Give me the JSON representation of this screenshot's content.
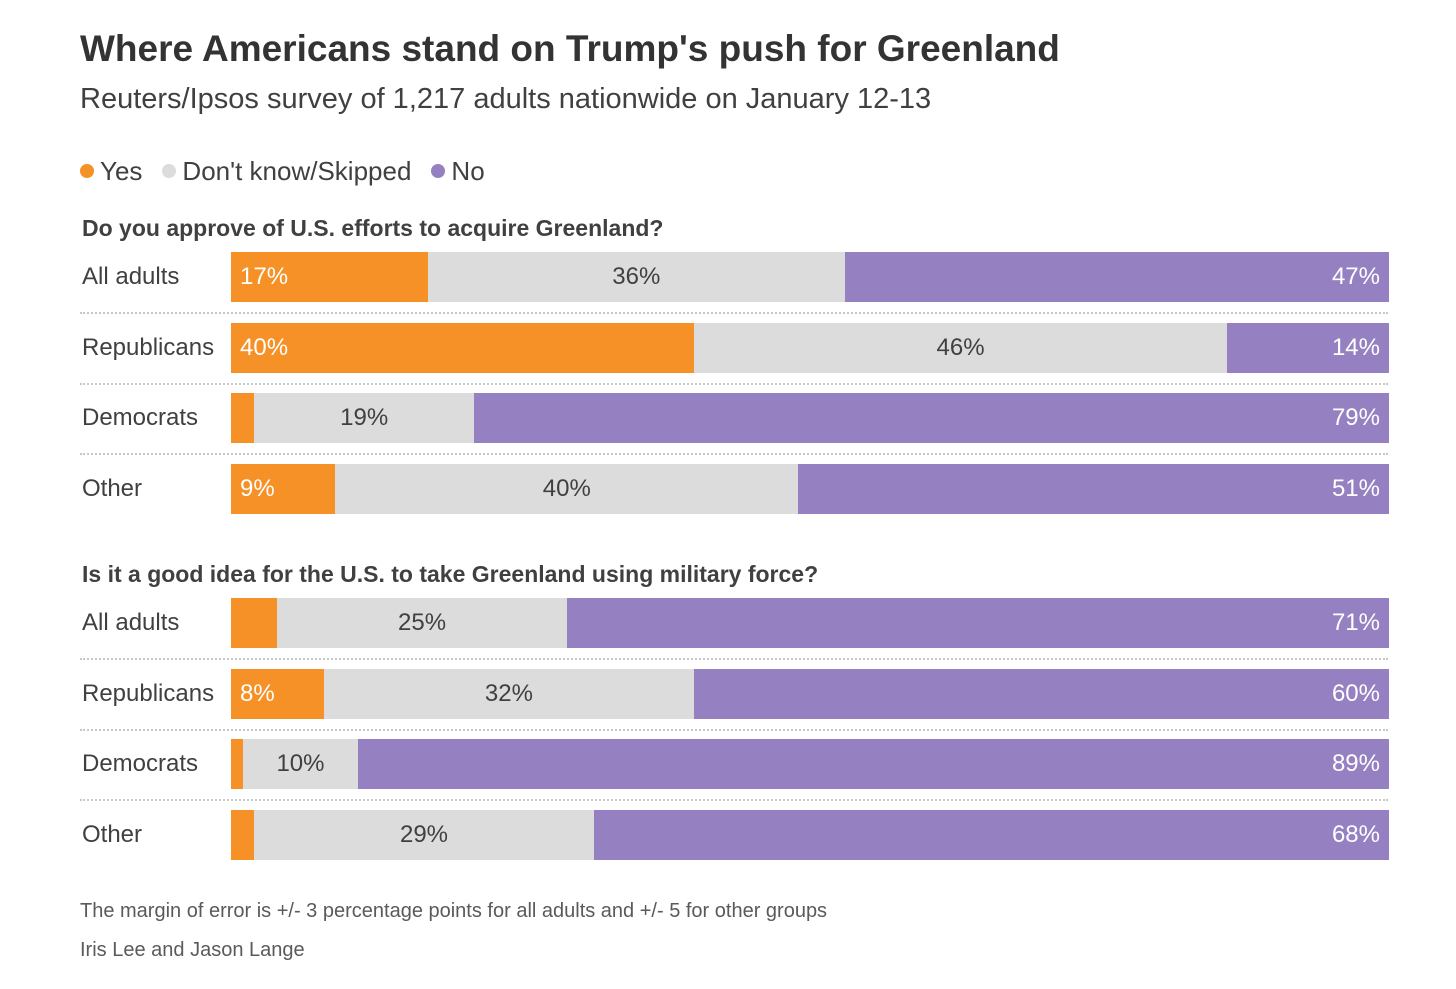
{
  "title": "Where Americans stand on Trump's push for Greenland",
  "subtitle": "Reuters/Ipsos survey of 1,217 adults nationwide on January 12-13",
  "legend": [
    {
      "label": "Yes",
      "color": "#f59127"
    },
    {
      "label": "Don't know/Skipped",
      "color": "#dcdcdc"
    },
    {
      "label": "No",
      "color": "#9581c1"
    }
  ],
  "chart_data": [
    {
      "type": "bar",
      "stacked": true,
      "orientation": "horizontal",
      "title": "Do you approve of U.S. efforts to acquire Greenland?",
      "categories": [
        "All adults",
        "Republicans",
        "Democrats",
        "Other"
      ],
      "series": [
        {
          "name": "Yes",
          "values": [
            17,
            40,
            2,
            9
          ],
          "labels": [
            "17%",
            "40%",
            "",
            "9%"
          ]
        },
        {
          "name": "Don't know/Skipped",
          "values": [
            36,
            46,
            19,
            40
          ],
          "labels": [
            "36%",
            "46%",
            "19%",
            "40%"
          ]
        },
        {
          "name": "No",
          "values": [
            47,
            14,
            79,
            51
          ],
          "labels": [
            "47%",
            "14%",
            "79%",
            "51%"
          ]
        }
      ]
    },
    {
      "type": "bar",
      "stacked": true,
      "orientation": "horizontal",
      "title": "Is it a good idea for the U.S. to take Greenland using military force?",
      "categories": [
        "All adults",
        "Republicans",
        "Democrats",
        "Other"
      ],
      "series": [
        {
          "name": "Yes",
          "values": [
            4,
            8,
            1,
            2
          ],
          "labels": [
            "",
            "8%",
            "",
            ""
          ]
        },
        {
          "name": "Don't know/Skipped",
          "values": [
            25,
            32,
            10,
            29
          ],
          "labels": [
            "25%",
            "32%",
            "10%",
            "29%"
          ]
        },
        {
          "name": "No",
          "values": [
            71,
            60,
            89,
            68
          ],
          "labels": [
            "71%",
            "60%",
            "89%",
            "68%"
          ]
        }
      ]
    }
  ],
  "footnote": "The margin of error is +/- 3 percentage points for all adults and +/- 5 for other groups",
  "credit": "Iris Lee and Jason Lange"
}
